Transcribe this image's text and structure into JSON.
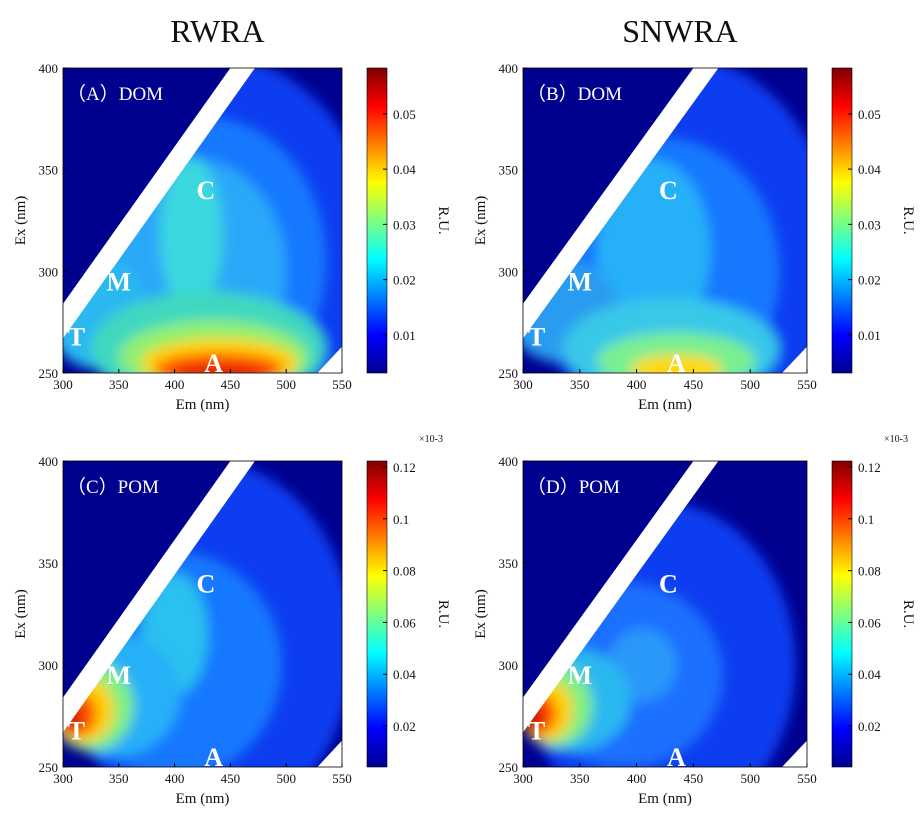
{
  "chart_data": [
    {
      "type": "contour",
      "title": "RWRA",
      "label": "（A）DOM",
      "xlabel": "Em (nm)",
      "ylabel": "Ex (nm)",
      "colorbar_label": "R.U.",
      "xlim": [
        300,
        550
      ],
      "xticks": [
        300,
        350,
        400,
        450,
        500,
        550
      ],
      "ylim": [
        250,
        400
      ],
      "yticks": [
        250,
        300,
        350,
        400
      ],
      "clim": [
        0.0031,
        0.0583
      ],
      "cticks": [
        0.01,
        0.02,
        0.03,
        0.04,
        0.05
      ],
      "peaks": [
        "C",
        "M",
        "T",
        "A"
      ]
    },
    {
      "type": "contour",
      "title": "SNWRA",
      "label": "（B）DOM",
      "xlabel": "Em (nm)",
      "ylabel": "Ex (nm)",
      "colorbar_label": "R.U.",
      "xlim": [
        300,
        550
      ],
      "xticks": [
        300,
        350,
        400,
        450,
        500,
        550
      ],
      "ylim": [
        250,
        400
      ],
      "yticks": [
        250,
        300,
        350,
        400
      ],
      "clim": [
        0.0031,
        0.0583
      ],
      "cticks": [
        0.01,
        0.02,
        0.03,
        0.04,
        0.05
      ],
      "peaks": [
        "C",
        "M",
        "T",
        "A"
      ]
    },
    {
      "type": "contour",
      "label": "（C）POM",
      "xlabel": "Em (nm)",
      "ylabel": "Ex (nm)",
      "colorbar_label": "R.U.",
      "colorbar_scale": "×10-3",
      "xlim": [
        300,
        550
      ],
      "xticks": [
        300,
        350,
        400,
        450,
        500,
        550
      ],
      "ylim": [
        250,
        400
      ],
      "yticks": [
        250,
        300,
        350,
        400
      ],
      "clim": [
        0.0042,
        0.1223
      ],
      "cticks": [
        0.02,
        0.04,
        0.06,
        0.08,
        0.1,
        0.12
      ],
      "peaks": [
        "C",
        "M",
        "T",
        "A"
      ]
    },
    {
      "type": "contour",
      "label": "（D）POM",
      "xlabel": "Em (nm)",
      "ylabel": "Ex (nm)",
      "colorbar_label": "R.U.",
      "colorbar_scale": "×10-3",
      "xlim": [
        300,
        550
      ],
      "xticks": [
        300,
        350,
        400,
        450,
        500,
        550
      ],
      "ylim": [
        250,
        400
      ],
      "yticks": [
        250,
        300,
        350,
        400
      ],
      "clim": [
        0.0042,
        0.1223
      ],
      "cticks": [
        0.02,
        0.04,
        0.06,
        0.08,
        0.1,
        0.12
      ],
      "peaks": [
        "C",
        "M",
        "T",
        "A"
      ]
    }
  ]
}
